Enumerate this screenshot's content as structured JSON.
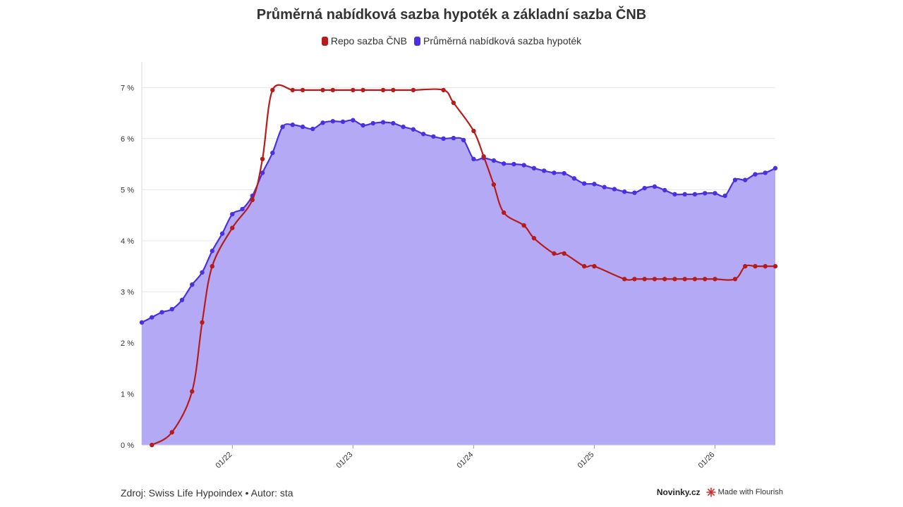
{
  "chart_data": {
    "type": "line",
    "title": "Průměrná nabídková sazba hypoték a základní sazba ČNB",
    "x_tick_labels": [
      "01/22",
      "01/23",
      "01/24",
      "01/25",
      "01/26"
    ],
    "x_ticks": [
      "2022-01",
      "2023-01",
      "2024-01",
      "2025-01",
      "2026-01"
    ],
    "x_range": [
      "2021-04",
      "2026-07"
    ],
    "y_tick_labels": [
      "0 %",
      "1 %",
      "2 %",
      "3 %",
      "4 %",
      "5 %",
      "6 %",
      "7 %"
    ],
    "y_ticks": [
      0,
      1,
      2,
      3,
      4,
      5,
      6,
      7
    ],
    "ylim": [
      0,
      7.5
    ],
    "grid": "horizontal",
    "legend_position": "top-center",
    "series": [
      {
        "name": "Repo sazba ČNB",
        "color": "#b71c1c",
        "area": false,
        "points": [
          [
            "2021-05",
            0.0
          ],
          [
            "2021-07",
            0.25
          ],
          [
            "2021-09",
            1.05
          ],
          [
            "2021-10",
            2.4
          ],
          [
            "2021-11",
            3.5
          ],
          [
            "2022-01",
            4.25
          ],
          [
            "2022-03",
            4.8
          ],
          [
            "2022-04",
            5.6
          ],
          [
            "2022-05",
            6.95
          ],
          [
            "2022-07",
            6.95
          ],
          [
            "2022-08",
            6.95
          ],
          [
            "2022-10",
            6.95
          ],
          [
            "2022-11",
            6.95
          ],
          [
            "2023-01",
            6.95
          ],
          [
            "2023-02",
            6.95
          ],
          [
            "2023-04",
            6.95
          ],
          [
            "2023-05",
            6.95
          ],
          [
            "2023-07",
            6.95
          ],
          [
            "2023-10",
            6.95
          ],
          [
            "2023-11",
            6.7
          ],
          [
            "2024-01",
            6.15
          ],
          [
            "2024-02",
            5.65
          ],
          [
            "2024-03",
            5.1
          ],
          [
            "2024-04",
            4.55
          ],
          [
            "2024-06",
            4.3
          ],
          [
            "2024-07",
            4.05
          ],
          [
            "2024-09",
            3.75
          ],
          [
            "2024-10",
            3.75
          ],
          [
            "2024-12",
            3.5
          ],
          [
            "2025-01",
            3.5
          ],
          [
            "2025-04",
            3.25
          ],
          [
            "2025-05",
            3.25
          ],
          [
            "2025-06",
            3.25
          ],
          [
            "2025-07",
            3.25
          ],
          [
            "2025-08",
            3.25
          ],
          [
            "2025-09",
            3.25
          ],
          [
            "2025-10",
            3.25
          ],
          [
            "2025-11",
            3.25
          ],
          [
            "2025-12",
            3.25
          ],
          [
            "2026-01",
            3.25
          ],
          [
            "2026-03",
            3.25
          ],
          [
            "2026-04",
            3.5
          ],
          [
            "2026-05",
            3.5
          ],
          [
            "2026-06",
            3.5
          ],
          [
            "2026-07",
            3.5
          ]
        ]
      },
      {
        "name": "Průměrná nabídková sazba hypoték",
        "color": "#4b2fe0",
        "area": true,
        "area_color": "#b3a9f5",
        "points": [
          [
            "2021-04",
            2.4
          ],
          [
            "2021-05",
            2.5
          ],
          [
            "2021-06",
            2.6
          ],
          [
            "2021-07",
            2.66
          ],
          [
            "2021-08",
            2.84
          ],
          [
            "2021-09",
            3.14
          ],
          [
            "2021-10",
            3.38
          ],
          [
            "2021-11",
            3.8
          ],
          [
            "2021-12",
            4.14
          ],
          [
            "2022-01",
            4.52
          ],
          [
            "2022-02",
            4.62
          ],
          [
            "2022-03",
            4.88
          ],
          [
            "2022-04",
            5.33
          ],
          [
            "2022-05",
            5.72
          ],
          [
            "2022-06",
            6.23
          ],
          [
            "2022-07",
            6.27
          ],
          [
            "2022-08",
            6.23
          ],
          [
            "2022-09",
            6.19
          ],
          [
            "2022-10",
            6.31
          ],
          [
            "2022-11",
            6.34
          ],
          [
            "2022-12",
            6.33
          ],
          [
            "2023-01",
            6.36
          ],
          [
            "2023-02",
            6.26
          ],
          [
            "2023-03",
            6.3
          ],
          [
            "2023-04",
            6.32
          ],
          [
            "2023-05",
            6.3
          ],
          [
            "2023-06",
            6.23
          ],
          [
            "2023-07",
            6.18
          ],
          [
            "2023-08",
            6.09
          ],
          [
            "2023-09",
            6.04
          ],
          [
            "2023-10",
            6.0
          ],
          [
            "2023-11",
            6.01
          ],
          [
            "2023-12",
            5.97
          ],
          [
            "2024-01",
            5.6
          ],
          [
            "2024-02",
            5.62
          ],
          [
            "2024-03",
            5.57
          ],
          [
            "2024-04",
            5.51
          ],
          [
            "2024-05",
            5.5
          ],
          [
            "2024-06",
            5.48
          ],
          [
            "2024-07",
            5.42
          ],
          [
            "2024-08",
            5.37
          ],
          [
            "2024-09",
            5.33
          ],
          [
            "2024-10",
            5.32
          ],
          [
            "2024-11",
            5.22
          ],
          [
            "2024-12",
            5.12
          ],
          [
            "2025-01",
            5.11
          ],
          [
            "2025-02",
            5.05
          ],
          [
            "2025-03",
            5.01
          ],
          [
            "2025-04",
            4.96
          ],
          [
            "2025-05",
            4.94
          ],
          [
            "2025-06",
            5.03
          ],
          [
            "2025-07",
            5.06
          ],
          [
            "2025-08",
            4.99
          ],
          [
            "2025-09",
            4.91
          ],
          [
            "2025-10",
            4.91
          ],
          [
            "2025-11",
            4.91
          ],
          [
            "2025-12",
            4.93
          ],
          [
            "2026-01",
            4.93
          ],
          [
            "2026-02",
            4.88
          ],
          [
            "2026-03",
            5.19
          ],
          [
            "2026-04",
            5.19
          ],
          [
            "2026-05",
            5.3
          ],
          [
            "2026-06",
            5.33
          ],
          [
            "2026-07",
            5.42
          ]
        ]
      }
    ]
  },
  "footer": {
    "source": "Zdroj: Swiss Life Hypoindex • Autor: sta",
    "brand": "Novinky.cz",
    "made_with": "Made with Flourish"
  }
}
